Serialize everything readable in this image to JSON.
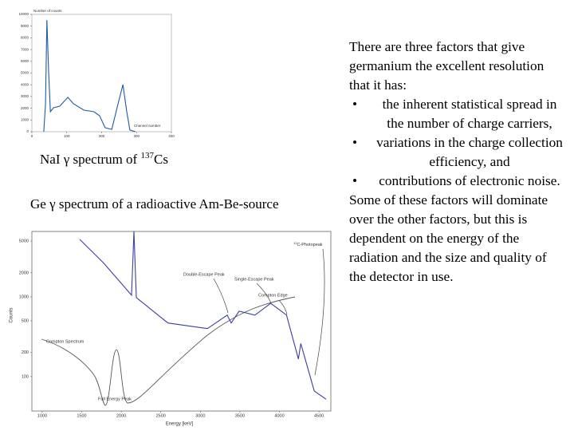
{
  "chart_data": [
    {
      "type": "line",
      "title": "NaI γ spectrum of ",
      "title_sup": "137",
      "title_end": "Cs",
      "y_label": "Number of counts",
      "x_label": "Channel number",
      "x": [
        34,
        39,
        43,
        48,
        53,
        62,
        80,
        103,
        119,
        149,
        178,
        194,
        210,
        229,
        247,
        261,
        272,
        281,
        297
      ],
      "series": [
        {
          "name": "NaI",
          "color": "#1f5aa6",
          "values": [
            0,
            2380,
            9520,
            5100,
            1700,
            2040,
            2180,
            2930,
            2380,
            1840,
            1700,
            1360,
            340,
            200,
            2380,
            4010,
            1700,
            140,
            0
          ]
        }
      ],
      "xlim": [
        0,
        400
      ],
      "xticks": [
        0,
        100,
        200,
        300,
        400
      ],
      "ylim": [
        0,
        10000
      ],
      "yticks": [
        0,
        1000,
        2000,
        3000,
        4000,
        5000,
        6000,
        7000,
        8000,
        9000,
        10000
      ],
      "log": false
    },
    {
      "type": "line",
      "title": "Ge γ spectrum of a radioactive Am-Be-source",
      "y_label": "Counts",
      "x_label": "Energy [keV]",
      "x": [
        1475,
        1780,
        2130,
        2160,
        2190,
        2590,
        3090,
        3340,
        3390,
        3490,
        3690,
        3890,
        4090,
        4240,
        4270,
        4440,
        4590
      ],
      "series": [
        {
          "name": "Ge",
          "color": "#3a3fa0",
          "values": [
            5250,
            2630,
            1050,
            6600,
            980,
            470,
            400,
            590,
            470,
            660,
            590,
            830,
            590,
            166,
            260,
            66,
            52
          ]
        }
      ],
      "xlim": [
        870,
        4650
      ],
      "xticks": [
        1000,
        1500,
        2000,
        2500,
        3000,
        3500,
        4000,
        4500
      ],
      "ylim": [
        37,
        6600
      ],
      "yticks": [
        100,
        200,
        500,
        1000,
        2000,
        5000
      ],
      "log": true,
      "annotations": [
        "Double-Escape Peak",
        "Single-Escape Peak",
        "Compton Edge",
        "Compton Spectrum",
        "Full Energy Peak"
      ],
      "photopeak": {
        "sup": "12",
        "text": "C-Photopeak"
      }
    }
  ],
  "text": {
    "intro": "There are three factors that give germanium the excellent resolution that it has:",
    "bullets": [
      "the inherent statistical spread in the number of charge carriers,",
      "variations in the charge collection efficiency, and",
      "contributions of electronic noise."
    ],
    "outro": "Some of these factors will dominate over the other factors, but this is dependent on the energy of the radiation and the size and quality of the detector in use."
  }
}
